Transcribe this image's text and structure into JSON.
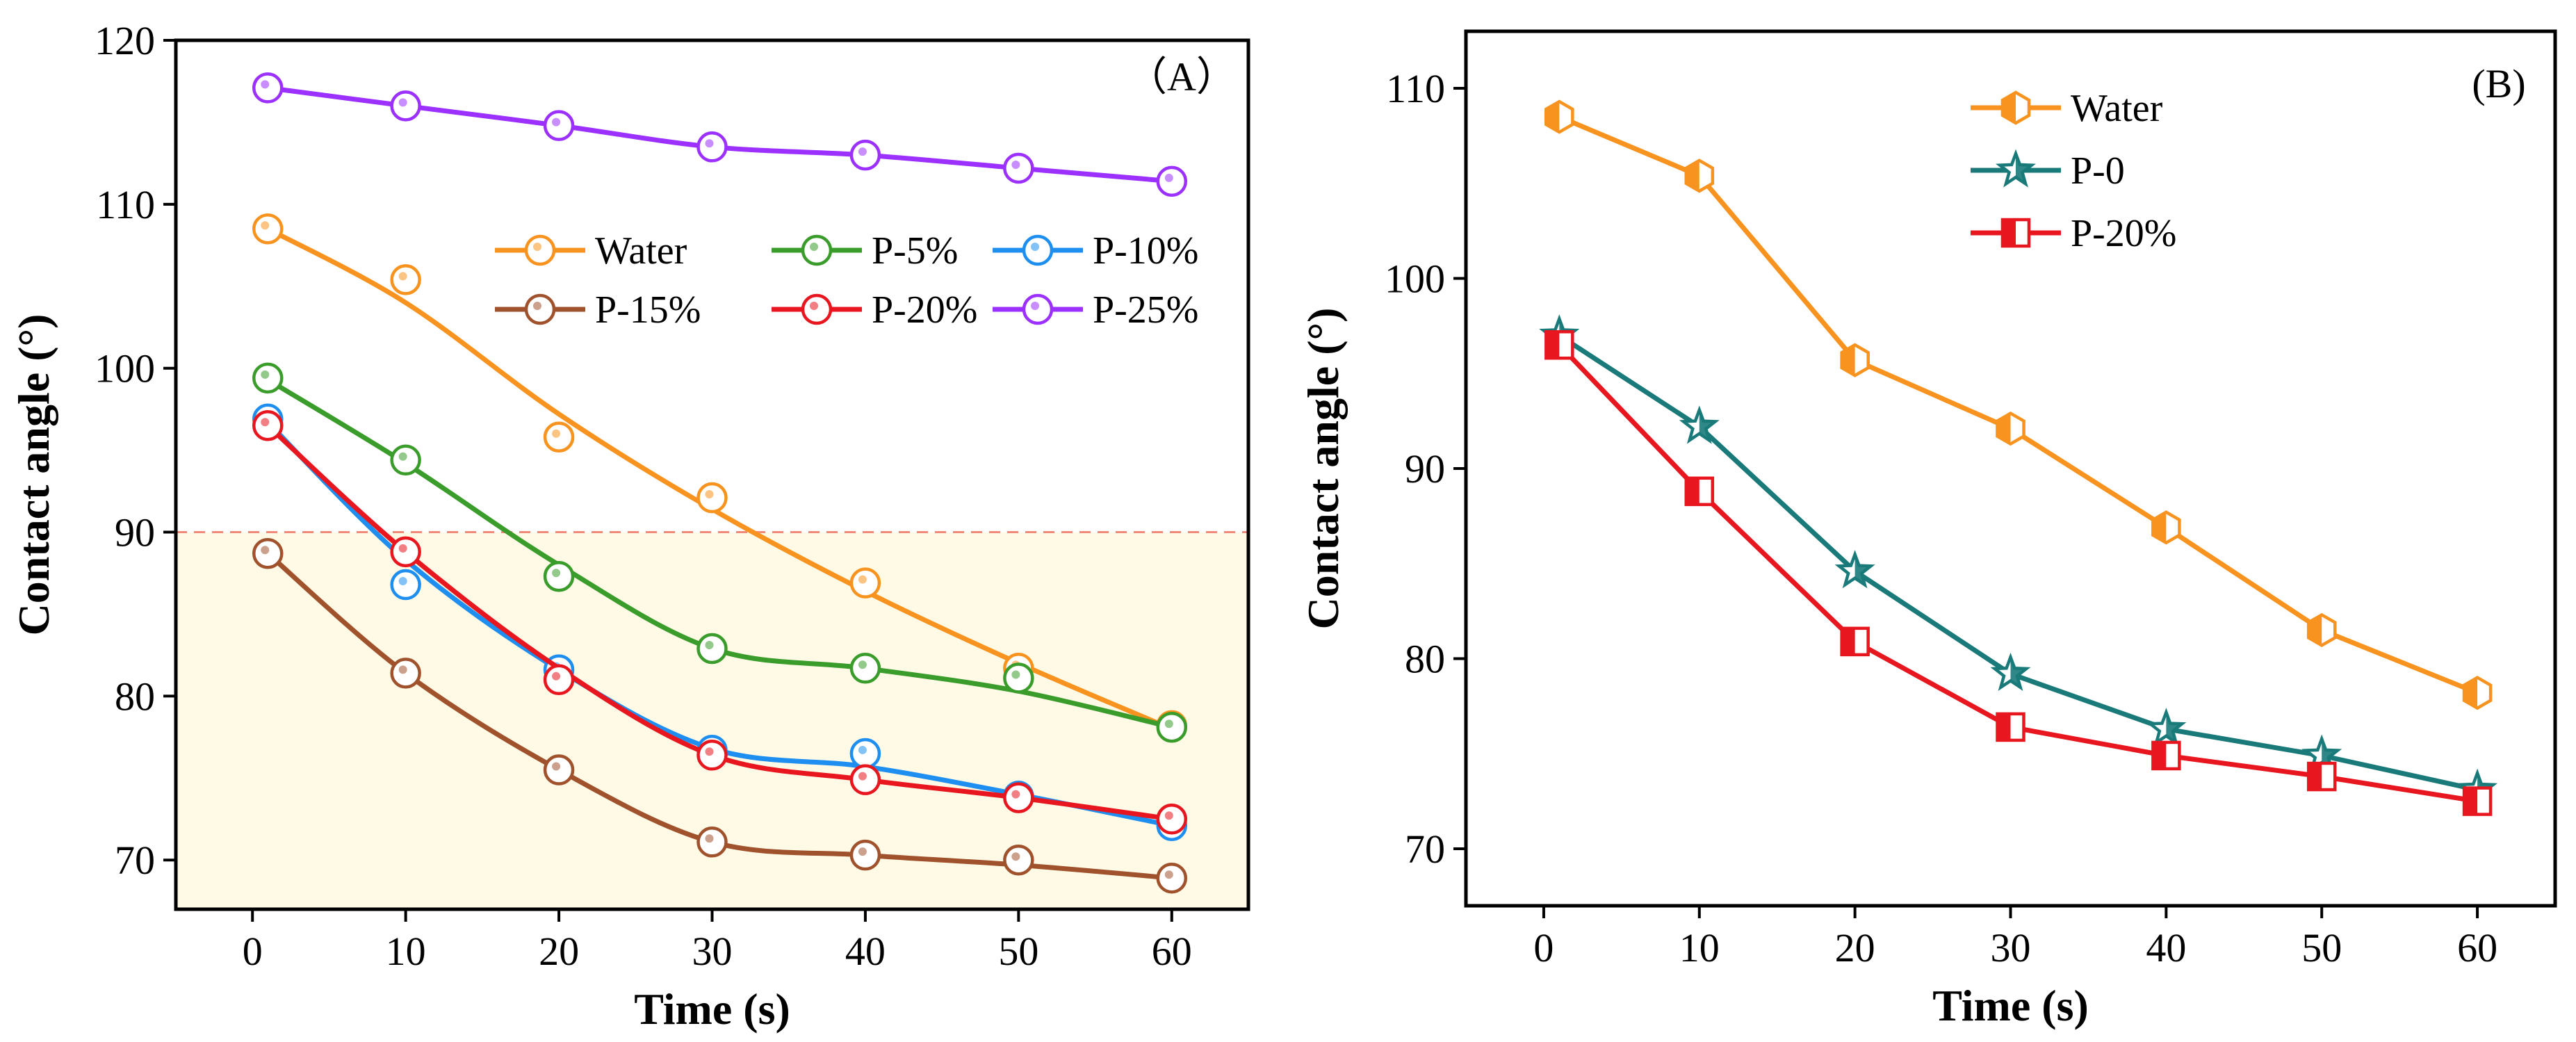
{
  "chart_data": [
    {
      "panel_label": "（A）",
      "type": "line",
      "xlabel": "Time (s)",
      "ylabel": "Contact angle (°)",
      "xlim": [
        -5,
        65
      ],
      "ylim": [
        67,
        120
      ],
      "xticks": [
        0,
        10,
        20,
        30,
        40,
        50,
        60
      ],
      "yticks": [
        70,
        80,
        90,
        100,
        110,
        120
      ],
      "threshold": {
        "value": 90,
        "color": "#f08a7a",
        "fill": "#fefae6"
      },
      "legend_position": "top-right",
      "x": [
        1,
        10,
        20,
        30,
        40,
        50,
        60
      ],
      "series": [
        {
          "name": "Water",
          "color": "#f7931e",
          "marker": "circle",
          "values": [
            108.5,
            105.4,
            95.8,
            92.1,
            86.9,
            81.7,
            78.2
          ],
          "fit": [
            108.5,
            104.0,
            97.2,
            91.4,
            86.4,
            82.0,
            78.0
          ]
        },
        {
          "name": "P-5%",
          "color": "#3a9c2a",
          "marker": "circle",
          "values": [
            99.4,
            94.4,
            87.3,
            82.9,
            81.7,
            81.1,
            78.1
          ],
          "fit": [
            99.3,
            94.2,
            88.0,
            82.9,
            81.7,
            80.3,
            78.1
          ]
        },
        {
          "name": "P-10%",
          "color": "#1e8ff0",
          "marker": "circle",
          "values": [
            96.9,
            86.8,
            81.6,
            76.7,
            76.5,
            73.9,
            72.1
          ],
          "fit": [
            96.7,
            88.3,
            81.6,
            76.8,
            75.7,
            74.0,
            72.1
          ]
        },
        {
          "name": "P-15%",
          "color": "#a0522d",
          "marker": "circle",
          "values": [
            88.7,
            81.4,
            75.5,
            71.1,
            70.3,
            70.0,
            68.9
          ],
          "fit": [
            88.7,
            81.4,
            75.5,
            71.1,
            70.3,
            69.7,
            68.9
          ]
        },
        {
          "name": "P-20%",
          "color": "#e8161e",
          "marker": "circle",
          "values": [
            96.5,
            88.8,
            81.0,
            76.4,
            74.9,
            73.8,
            72.5
          ],
          "fit": [
            96.5,
            88.8,
            81.7,
            76.4,
            74.9,
            73.8,
            72.5
          ]
        },
        {
          "name": "P-25%",
          "color": "#9b30ff",
          "marker": "circle",
          "values": [
            117.1,
            116.0,
            114.8,
            113.5,
            113.0,
            112.2,
            111.4
          ],
          "fit": [
            117.1,
            116.0,
            114.8,
            113.5,
            113.0,
            112.2,
            111.4
          ]
        }
      ]
    },
    {
      "panel_label": "(B)",
      "type": "line",
      "xlabel": "Time (s)",
      "ylabel": "Contact angle (°)",
      "xlim": [
        -5,
        65
      ],
      "ylim": [
        67,
        113
      ],
      "xticks": [
        0,
        10,
        20,
        30,
        40,
        50,
        60
      ],
      "yticks": [
        70,
        80,
        90,
        100,
        110
      ],
      "legend_position": "top-left",
      "x": [
        1,
        10,
        20,
        30,
        40,
        50,
        60
      ],
      "series": [
        {
          "name": "Water",
          "color": "#f7931e",
          "marker": "hexagon",
          "values": [
            108.5,
            105.4,
            95.7,
            92.1,
            86.9,
            81.5,
            78.2
          ]
        },
        {
          "name": "P-0",
          "color": "#1a7a7a",
          "marker": "star",
          "values": [
            97.0,
            92.2,
            84.6,
            79.2,
            76.3,
            74.9,
            73.1
          ]
        },
        {
          "name": "P-20%",
          "color": "#e8161e",
          "marker": "square",
          "values": [
            96.5,
            88.8,
            80.9,
            76.4,
            74.9,
            73.8,
            72.5
          ]
        }
      ]
    }
  ]
}
